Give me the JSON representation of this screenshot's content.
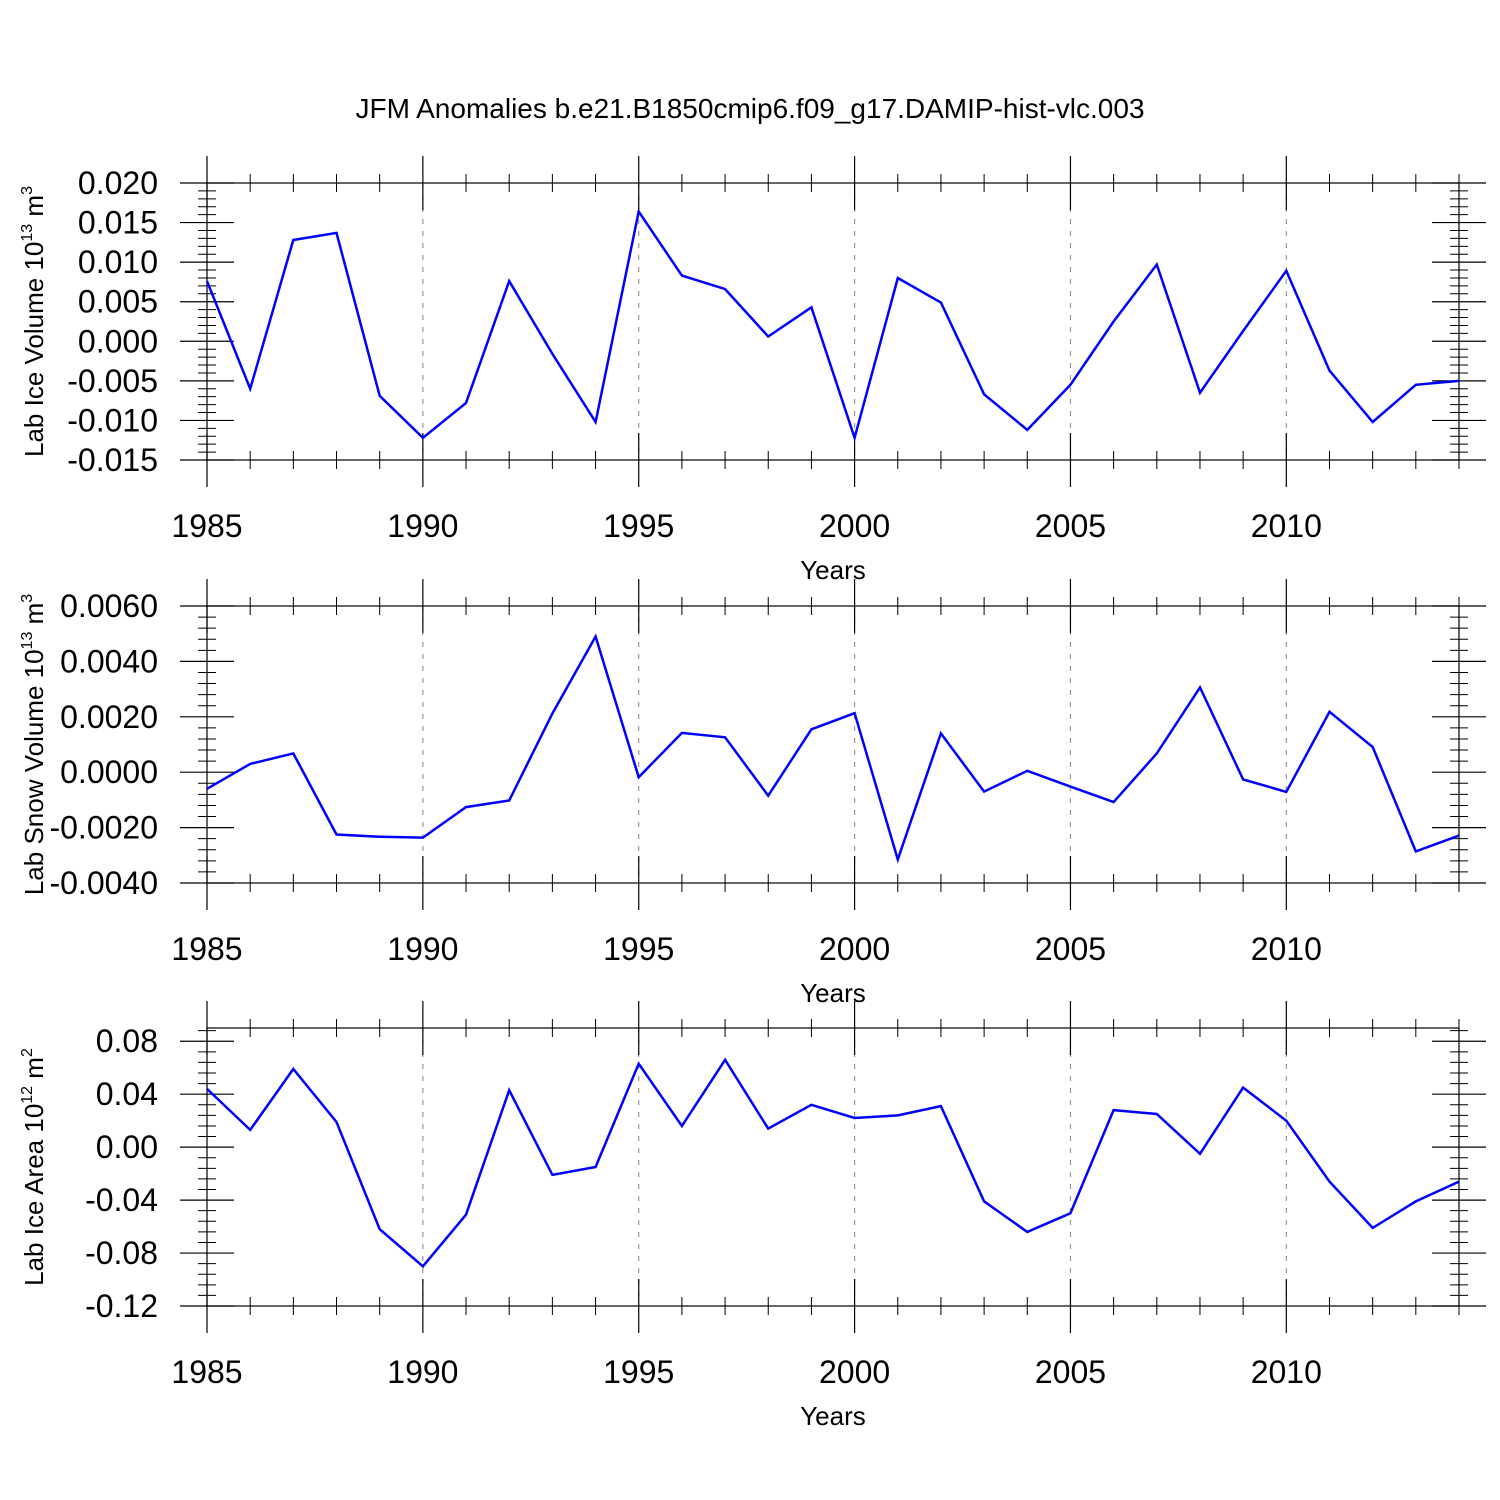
{
  "title": "JFM Anomalies b.e21.B1850cmip6.f09_g17.DAMIP-hist-vlc.003",
  "line_color": "#0000ff",
  "chart_data": [
    {
      "type": "line",
      "xlabel": "Years",
      "ylabel": {
        "text": "Lab Ice Volume 10",
        "exp": "13",
        "unit": " m",
        "unit_exp": "3"
      },
      "xlim": [
        1985,
        2014
      ],
      "ylim": [
        -0.015,
        0.02
      ],
      "x_ticks": [
        1985,
        1990,
        1995,
        2000,
        2005,
        2010
      ],
      "y_ticks": [
        "0.020",
        "0.015",
        "0.010",
        "0.005",
        "0.000",
        "-0.005",
        "-0.010",
        "-0.015"
      ],
      "y_tick_values": [
        0.02,
        0.015,
        0.01,
        0.005,
        0.0,
        -0.005,
        -0.01,
        -0.015
      ],
      "x_grid": "dashed at x ticks",
      "x": [
        1985,
        1986,
        1987,
        1988,
        1989,
        1990,
        1991,
        1992,
        1993,
        1994,
        1995,
        1996,
        1997,
        1998,
        1999,
        2000,
        2001,
        2002,
        2003,
        2004,
        2005,
        2006,
        2007,
        2008,
        2009,
        2010,
        2011,
        2012,
        2013,
        2014
      ],
      "values": [
        0.0076,
        -0.006,
        0.0128,
        0.0137,
        -0.0069,
        -0.0122,
        -0.0078,
        0.0076,
        -0.0016,
        -0.0102,
        0.0164,
        0.0083,
        0.0066,
        0.0006,
        0.0043,
        -0.0122,
        0.008,
        0.0049,
        -0.0067,
        -0.0112,
        -0.0055,
        0.0025,
        0.0097,
        -0.0065,
        0.0013,
        0.0089,
        -0.0037,
        -0.0102,
        -0.0055,
        -0.005
      ]
    },
    {
      "type": "line",
      "xlabel": "Years",
      "ylabel": {
        "text": "Lab Snow Volume 10",
        "exp": "13",
        "unit": " m",
        "unit_exp": "3"
      },
      "xlim": [
        1985,
        2014
      ],
      "ylim": [
        -0.004,
        0.006
      ],
      "x_ticks": [
        1985,
        1990,
        1995,
        2000,
        2005,
        2010
      ],
      "y_ticks": [
        "0.0060",
        "0.0040",
        "0.0020",
        "0.0000",
        "-0.0020",
        "-0.0040"
      ],
      "y_tick_values": [
        0.006,
        0.004,
        0.002,
        0.0,
        -0.002,
        -0.004
      ],
      "x_grid": "dashed at x ticks",
      "x": [
        1985,
        1986,
        1987,
        1988,
        1989,
        1990,
        1991,
        1992,
        1993,
        1994,
        1995,
        1996,
        1997,
        1998,
        1999,
        2000,
        2001,
        2002,
        2003,
        2004,
        2005,
        2006,
        2007,
        2008,
        2009,
        2010,
        2011,
        2012,
        2013,
        2014
      ],
      "values": [
        -0.0006,
        0.0003,
        0.00068,
        -0.00225,
        -0.00233,
        -0.00236,
        -0.00126,
        -0.00102,
        0.00212,
        0.0049,
        -0.00018,
        0.00142,
        0.00126,
        -0.00085,
        0.00155,
        0.00213,
        -0.00315,
        0.0014,
        -0.0007,
        5e-05,
        -0.00052,
        -0.00108,
        0.00068,
        0.00306,
        -0.00026,
        -0.00071,
        0.00218,
        0.00091,
        -0.00286,
        -0.00229
      ]
    },
    {
      "type": "line",
      "xlabel": "Years",
      "ylabel": {
        "text": "Lab Ice Area 10",
        "exp": "12",
        "unit": " m",
        "unit_exp": "2"
      },
      "xlim": [
        1985,
        2014
      ],
      "ylim": [
        -0.12,
        0.09
      ],
      "x_ticks": [
        1985,
        1990,
        1995,
        2000,
        2005,
        2010
      ],
      "y_ticks": [
        "0.08",
        "0.04",
        "0.00",
        "-0.04",
        "-0.08",
        "-0.12"
      ],
      "y_tick_values": [
        0.08,
        0.04,
        0.0,
        -0.04,
        -0.08,
        -0.12
      ],
      "x_grid": "dashed at x ticks",
      "x": [
        1985,
        1986,
        1987,
        1988,
        1989,
        1990,
        1991,
        1992,
        1993,
        1994,
        1995,
        1996,
        1997,
        1998,
        1999,
        2000,
        2001,
        2002,
        2003,
        2004,
        2005,
        2006,
        2007,
        2008,
        2009,
        2010,
        2011,
        2012,
        2013,
        2014
      ],
      "values": [
        0.044,
        0.013,
        0.059,
        0.019,
        -0.062,
        -0.09,
        -0.051,
        0.043,
        -0.021,
        -0.015,
        0.063,
        0.016,
        0.066,
        0.014,
        0.032,
        0.022,
        0.024,
        0.031,
        -0.041,
        -0.064,
        -0.05,
        0.028,
        0.025,
        -0.005,
        0.045,
        0.02,
        -0.026,
        -0.061,
        -0.041,
        -0.026
      ]
    }
  ]
}
